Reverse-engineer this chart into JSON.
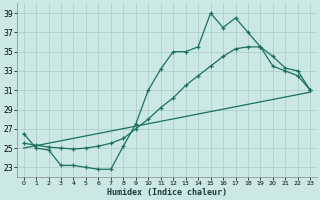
{
  "xlabel": "Humidex (Indice chaleur)",
  "bg_color": "#cce8e4",
  "grid_color": "#b0d0cc",
  "line_color": "#1a7060",
  "xlim": [
    -0.5,
    23.5
  ],
  "ylim": [
    22.0,
    40.0
  ],
  "xticks": [
    0,
    1,
    2,
    3,
    4,
    5,
    6,
    7,
    8,
    9,
    10,
    11,
    12,
    13,
    14,
    15,
    16,
    17,
    18,
    19,
    20,
    21,
    22,
    23
  ],
  "yticks": [
    23,
    25,
    27,
    29,
    31,
    33,
    35,
    37,
    39
  ],
  "line1_x": [
    0,
    1,
    2,
    3,
    4,
    5,
    6,
    7,
    8,
    9,
    10,
    11,
    12,
    13,
    14,
    15,
    16,
    17,
    18,
    19,
    20,
    21,
    22,
    23
  ],
  "line1_y": [
    26.5,
    25.0,
    24.8,
    23.2,
    23.2,
    23.0,
    22.8,
    22.8,
    25.2,
    27.5,
    31.0,
    33.2,
    35.0,
    35.0,
    35.5,
    39.0,
    37.5,
    38.5,
    37.0,
    35.5,
    33.5,
    33.0,
    32.5,
    31.0
  ],
  "line2_x": [
    0,
    1,
    2,
    3,
    4,
    5,
    6,
    7,
    8,
    9,
    10,
    11,
    12,
    13,
    14,
    15,
    16,
    17,
    18,
    19,
    20,
    21,
    22,
    23
  ],
  "line2_y": [
    25.5,
    25.3,
    25.1,
    25.0,
    24.9,
    25.0,
    25.2,
    25.5,
    26.0,
    27.0,
    28.0,
    29.2,
    30.2,
    31.5,
    32.5,
    33.5,
    34.5,
    35.3,
    35.5,
    35.5,
    34.5,
    33.3,
    33.0,
    31.0
  ],
  "line3_x": [
    0,
    23
  ],
  "line3_y": [
    25.0,
    30.8
  ]
}
